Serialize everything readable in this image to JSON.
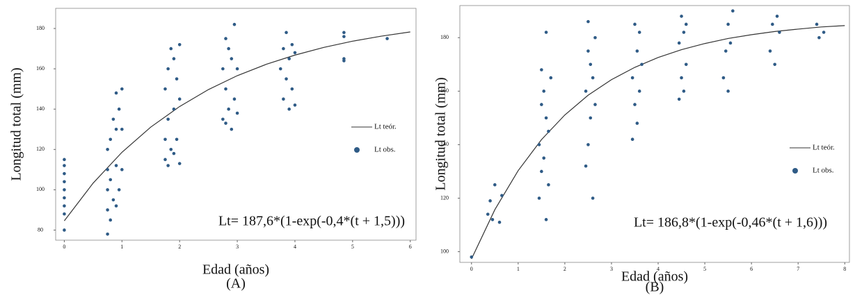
{
  "chart_data": [
    {
      "type": "scatter",
      "x_label": "Edad (años)",
      "y_label": "Longitud total (mm)",
      "caption": "(A)",
      "annotation": "Lt= 187,6*(1-exp(-0,4*(t + 1,5)))",
      "xlim": [
        -0.15,
        6.1
      ],
      "xticks": [
        0,
        1,
        2,
        3,
        4,
        5,
        6
      ],
      "ylim": [
        75,
        190
      ],
      "yticks": [
        80,
        100,
        120,
        140,
        160,
        180
      ],
      "legend": "right",
      "series": [
        {
          "name": "Lt teór.",
          "color": "#333333",
          "style": "line",
          "x": [
            0,
            0.5,
            1,
            1.5,
            2,
            2.5,
            3,
            3.5,
            4,
            4.5,
            5,
            5.5,
            6
          ],
          "values": [
            84.6,
            103.3,
            118.6,
            131.1,
            141.3,
            149.7,
            156.6,
            162.2,
            166.8,
            170.6,
            173.7,
            176.2,
            178.3
          ]
        },
        {
          "name": "Lt obs.",
          "color": "#2f5b86",
          "style": "points",
          "x": [
            0,
            0,
            0,
            0,
            0,
            0,
            0,
            0,
            0,
            0.75,
            0.75,
            0.75,
            0.75,
            0.75,
            0.8,
            0.8,
            0.8,
            0.85,
            0.85,
            0.9,
            0.9,
            0.9,
            0.9,
            0.95,
            0.95,
            1.0,
            1.0,
            1.0,
            1.75,
            1.75,
            1.75,
            1.8,
            1.8,
            1.8,
            1.85,
            1.85,
            1.9,
            1.9,
            1.9,
            1.95,
            1.95,
            2.0,
            2.0,
            2.0,
            2.75,
            2.75,
            2.8,
            2.8,
            2.8,
            2.85,
            2.85,
            2.9,
            2.9,
            2.95,
            2.95,
            3.0,
            3.0,
            3.75,
            3.8,
            3.8,
            3.85,
            3.85,
            3.9,
            3.9,
            3.95,
            3.95,
            4.0,
            4.0,
            4.85,
            4.85,
            4.85,
            4.85,
            5.6
          ],
          "values": [
            80,
            88,
            92,
            96,
            100,
            104,
            108,
            112,
            115,
            78,
            90,
            100,
            110,
            120,
            85,
            105,
            125,
            95,
            135,
            92,
            112,
            130,
            148,
            100,
            140,
            110,
            130,
            150,
            115,
            125,
            150,
            112,
            135,
            160,
            120,
            170,
            118,
            140,
            165,
            125,
            155,
            113,
            145,
            172,
            135,
            160,
            133,
            150,
            175,
            140,
            170,
            130,
            165,
            145,
            182,
            138,
            160,
            160,
            145,
            170,
            155,
            178,
            140,
            165,
            150,
            172,
            142,
            168,
            178,
            176,
            165,
            164,
            175
          ]
        }
      ]
    },
    {
      "type": "scatter",
      "x_label": "Edad (años)",
      "y_label": "Longitud total (mm)",
      "caption": "(B)",
      "annotation": "Lt= 186,8*(1-exp(-0,46*(t + 1,6)))",
      "xlim": [
        -0.25,
        8.1
      ],
      "xticks": [
        0,
        1,
        2,
        3,
        4,
        5,
        6,
        7,
        8
      ],
      "ylim": [
        96,
        192
      ],
      "yticks": [
        100,
        120,
        140,
        160,
        180
      ],
      "legend": "right",
      "series": [
        {
          "name": "Lt teór.",
          "color": "#333333",
          "style": "line",
          "x": [
            0,
            0.5,
            1,
            1.5,
            2,
            2.5,
            3,
            3.5,
            4,
            4.5,
            5,
            5.5,
            6,
            6.5,
            7,
            7.5,
            8
          ],
          "values": [
            97.3,
            115.7,
            130.3,
            141.9,
            151.1,
            158.5,
            164.3,
            168.9,
            172.6,
            175.5,
            177.8,
            179.7,
            181.1,
            182.3,
            183.2,
            184.0,
            184.5
          ]
        },
        {
          "name": "Lt obs.",
          "color": "#2f5b86",
          "style": "points",
          "x": [
            0,
            0.35,
            0.4,
            0.45,
            0.5,
            0.6,
            0.65,
            1.45,
            1.45,
            1.5,
            1.5,
            1.5,
            1.55,
            1.55,
            1.6,
            1.6,
            1.6,
            1.65,
            1.65,
            1.7,
            2.45,
            2.45,
            2.5,
            2.5,
            2.5,
            2.55,
            2.55,
            2.6,
            2.6,
            2.65,
            2.65,
            3.45,
            3.45,
            3.5,
            3.5,
            3.55,
            3.55,
            3.6,
            3.6,
            3.65,
            4.45,
            4.45,
            4.5,
            4.5,
            4.55,
            4.55,
            4.6,
            4.6,
            5.4,
            5.45,
            5.5,
            5.5,
            5.55,
            5.6,
            6.4,
            6.45,
            6.5,
            6.55,
            6.6,
            7.4,
            7.45,
            7.55
          ],
          "values": [
            98,
            114,
            119,
            112,
            125,
            111,
            121,
            120,
            140,
            130,
            155,
            168,
            135,
            160,
            112,
            150,
            182,
            125,
            145,
            165,
            132,
            160,
            140,
            175,
            186,
            150,
            170,
            120,
            165,
            155,
            180,
            142,
            165,
            155,
            185,
            148,
            175,
            160,
            182,
            170,
            157,
            178,
            165,
            188,
            160,
            182,
            170,
            185,
            165,
            175,
            160,
            185,
            178,
            190,
            175,
            185,
            170,
            188,
            182,
            185,
            180,
            182
          ]
        }
      ]
    }
  ]
}
